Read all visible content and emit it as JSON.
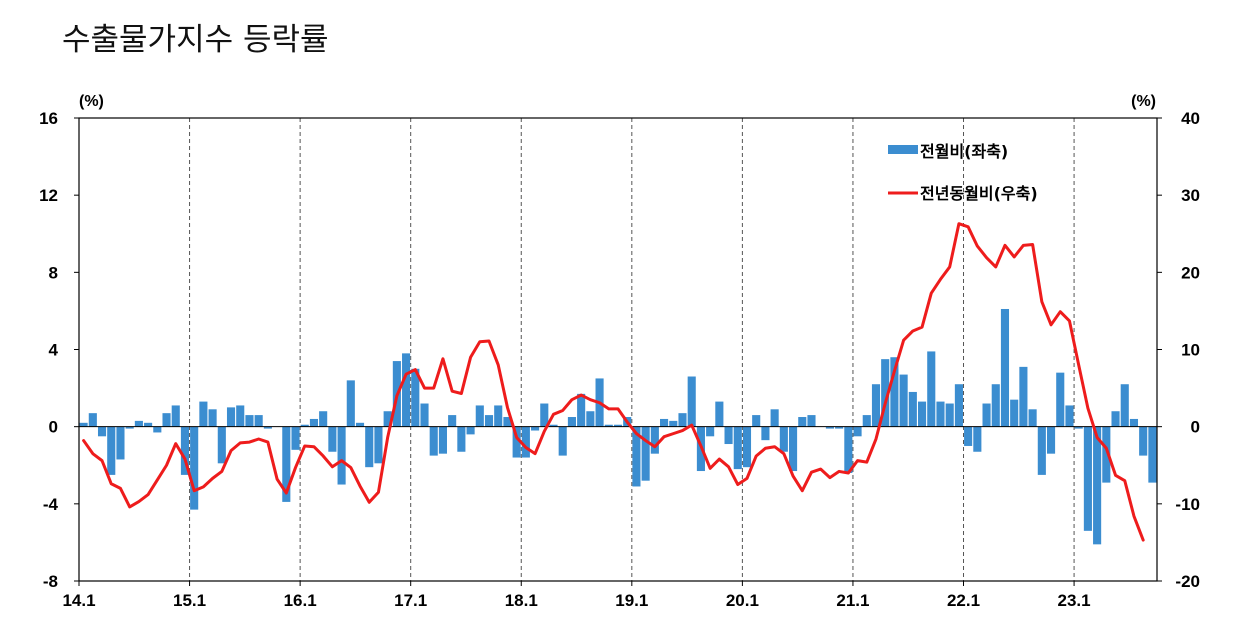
{
  "chart_data": {
    "title": "수출물가지수 등락률",
    "type": "bar+line",
    "x_tick_labels": [
      "14.1",
      "15.1",
      "16.1",
      "17.1",
      "18.1",
      "19.1",
      "20.1",
      "21.1",
      "22.1",
      "23.1"
    ],
    "left_axis": {
      "unit": "(%)",
      "range": [
        -8,
        16
      ],
      "ticks": [
        -8,
        -4,
        0,
        4,
        8,
        12,
        16
      ]
    },
    "right_axis": {
      "unit": "(%)",
      "range": [
        -20,
        40
      ],
      "ticks": [
        -20,
        -10,
        0,
        10,
        20,
        30,
        40
      ]
    },
    "vertical_gridlines": "dashed, at each year (Jan)",
    "legend_position": "top-right",
    "series": [
      {
        "name": "전월비(좌축)",
        "type": "bar",
        "axis": "left",
        "color": "#3b8dd0",
        "values": [
          0.2,
          0.7,
          -0.5,
          -2.5,
          -1.7,
          -0.1,
          0.3,
          0.2,
          -0.3,
          0.7,
          1.1,
          -2.5,
          -4.3,
          1.3,
          0.9,
          -1.9,
          1.0,
          1.1,
          0.6,
          0.6,
          -0.1,
          0,
          -3.9,
          -1.2,
          0.1,
          0.4,
          0.8,
          -1.3,
          -3.0,
          2.4,
          0.2,
          -2.1,
          -1.9,
          0.8,
          3.4,
          3.8,
          3.0,
          1.2,
          -1.5,
          -1.4,
          0.6,
          -1.3,
          -0.4,
          1.1,
          0.6,
          1.1,
          0.5,
          -1.6,
          -1.6,
          -0.2,
          1.2,
          0.1,
          -1.5,
          0.5,
          1.7,
          0.8,
          2.5,
          0.1,
          0.1,
          0.5,
          -3.1,
          -2.8,
          -1.4,
          0.4,
          0.3,
          0.7,
          2.6,
          -2.3,
          -0.5,
          1.3,
          -0.9,
          -2.2,
          -2.1,
          0.6,
          -0.7,
          0.9,
          -1.3,
          -2.3,
          0.5,
          0.6,
          0,
          -0.1,
          -0.1,
          -2.4,
          -0.5,
          0.6,
          2.2,
          3.5,
          3.6,
          2.7,
          1.8,
          1.3,
          3.9,
          1.3,
          1.2,
          2.2,
          -1.0,
          -1.3,
          1.2,
          2.2,
          6.1,
          1.4,
          3.1,
          0.9,
          -2.5,
          -1.4,
          2.8,
          1.1,
          -0.1,
          -5.4,
          -6.1,
          -2.9,
          0.8,
          2.2,
          0.4,
          -1.5,
          -2.9
        ]
      },
      {
        "name": "전년동월비(우축)",
        "type": "line",
        "axis": "right",
        "color": "#ee1c1c",
        "values": [
          -1.8,
          -3.5,
          -4.4,
          -7.4,
          -8.0,
          -10.4,
          -9.7,
          -8.8,
          -6.9,
          -5.0,
          -2.2,
          -4.2,
          -8.3,
          -7.8,
          -6.7,
          -5.8,
          -3.1,
          -2.1,
          -2.0,
          -1.6,
          -2.0,
          -6.8,
          -8.6,
          -5.3,
          -2.5,
          -2.6,
          -3.8,
          -5.2,
          -4.4,
          -5.3,
          -7.7,
          -9.8,
          -8.5,
          -1.4,
          4.0,
          6.8,
          7.4,
          5.0,
          5.0,
          8.8,
          4.6,
          4.3,
          9.0,
          11.0,
          11.1,
          8.0,
          2.5,
          -1.4,
          -2.7,
          -3.5,
          -0.6,
          1.6,
          2.1,
          3.5,
          4.1,
          3.5,
          3.1,
          2.3,
          2.3,
          0.6,
          -0.9,
          -1.8,
          -2.6,
          -1.3,
          -0.9,
          -0.5,
          0.2,
          -2.5,
          -5.4,
          -4.2,
          -5.2,
          -7.5,
          -6.7,
          -3.8,
          -2.8,
          -2.6,
          -3.5,
          -6.4,
          -8.3,
          -5.9,
          -5.5,
          -6.6,
          -5.8,
          -6.0,
          -4.4,
          -4.6,
          -1.6,
          3.0,
          7.2,
          11.2,
          12.4,
          12.9,
          17.3,
          19.1,
          20.7,
          26.3,
          25.9,
          23.4,
          21.9,
          20.7,
          23.5,
          22.0,
          23.5,
          23.6,
          16.2,
          13.2,
          14.9,
          13.7,
          8.0,
          2.4,
          -1.4,
          -2.8,
          -6.3,
          -7.0,
          -11.6,
          -14.7
        ]
      }
    ]
  }
}
